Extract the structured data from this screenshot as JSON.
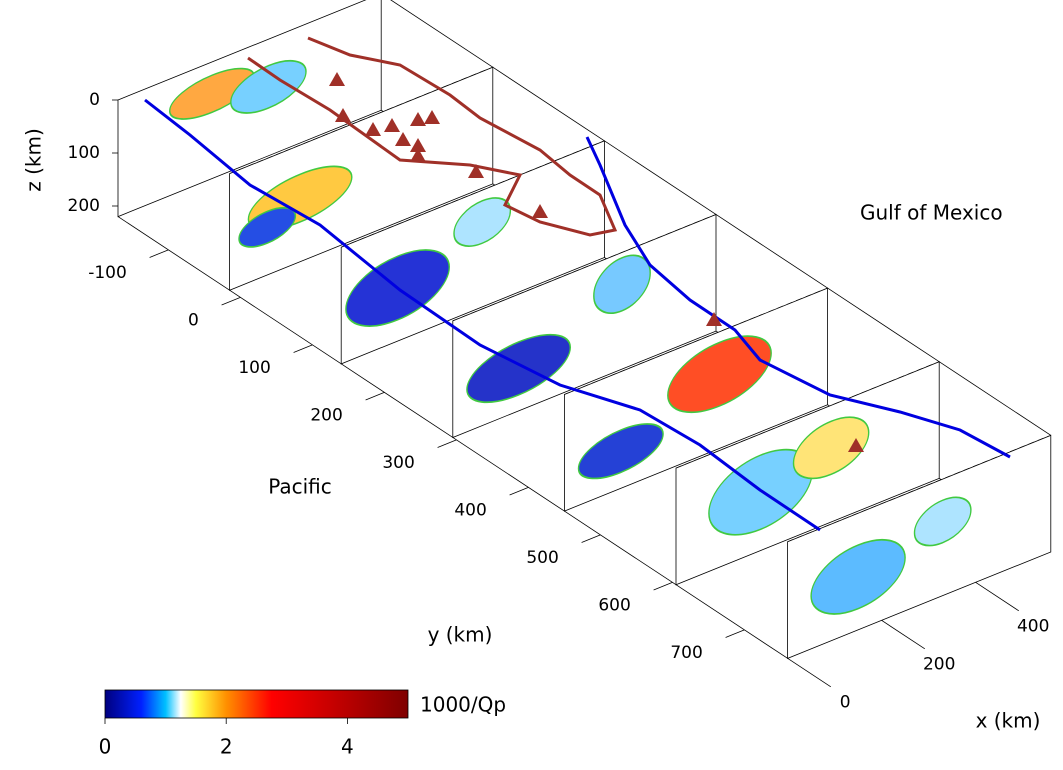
{
  "axes": {
    "z": {
      "label": "z (km)",
      "lim": [
        0,
        220
      ],
      "ticks": [
        0,
        100,
        200
      ]
    },
    "y": {
      "label": "y (km)",
      "lim": [
        -170,
        760
      ],
      "ticks": [
        -100,
        0,
        100,
        200,
        300,
        400,
        500,
        600,
        700
      ]
    },
    "x": {
      "label": "x (km)",
      "lim": [
        0,
        560
      ],
      "ticks": [
        0,
        200,
        400
      ]
    }
  },
  "colorbar": {
    "label": "1000/Qp",
    "lim": [
      0,
      5
    ],
    "ticks": [
      0,
      2,
      4
    ]
  },
  "annotations": {
    "gulf": "Gulf of Mexico",
    "pacific": "Pacific"
  }
}
